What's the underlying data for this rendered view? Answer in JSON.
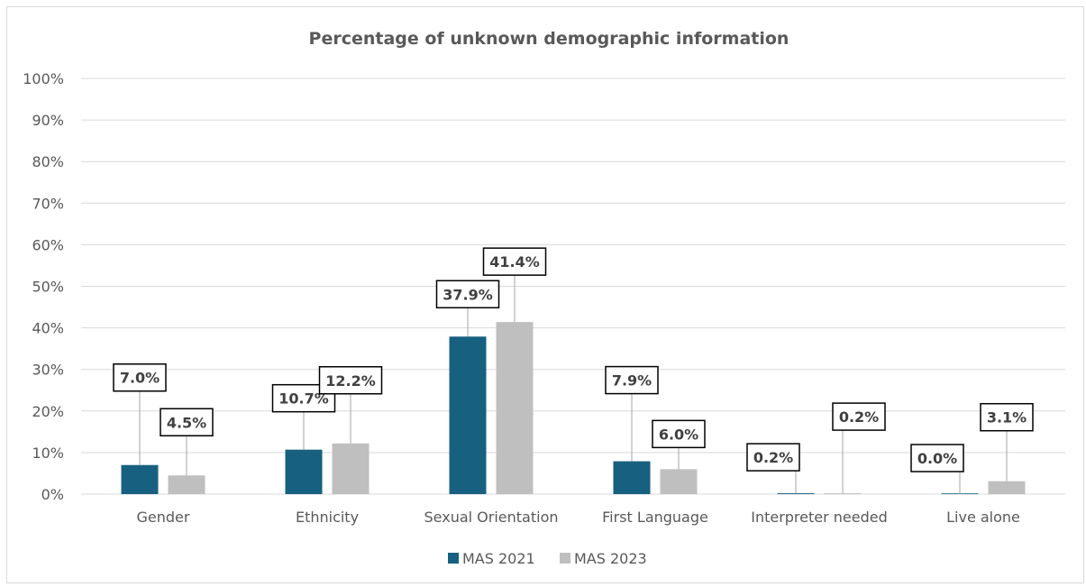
{
  "chart_data": {
    "type": "bar",
    "title": "Percentage of unknown demographic information",
    "categories": [
      "Gender",
      "Ethnicity",
      "Sexual Orientation",
      "First Language",
      "Interpreter needed",
      "Live alone"
    ],
    "series": [
      {
        "name": "MAS 2021",
        "values": [
          7.0,
          10.7,
          37.9,
          7.9,
          0.2,
          0.0
        ],
        "labels": [
          "7.0%",
          "10.7%",
          "37.9%",
          "7.9%",
          "0.2%",
          "0.0%"
        ],
        "color": "#17607f"
      },
      {
        "name": "MAS 2023",
        "values": [
          4.5,
          12.2,
          41.4,
          6.0,
          0.2,
          3.1
        ],
        "labels": [
          "4.5%",
          "12.2%",
          "41.4%",
          "6.0%",
          "0.2%",
          "3.1%"
        ],
        "color": "#bfbfbf"
      }
    ],
    "yticks": [
      "0%",
      "10%",
      "20%",
      "30%",
      "40%",
      "50%",
      "60%",
      "70%",
      "80%",
      "90%",
      "100%"
    ],
    "ylim": [
      0,
      100
    ],
    "grid": true,
    "legend_position": "bottom"
  }
}
